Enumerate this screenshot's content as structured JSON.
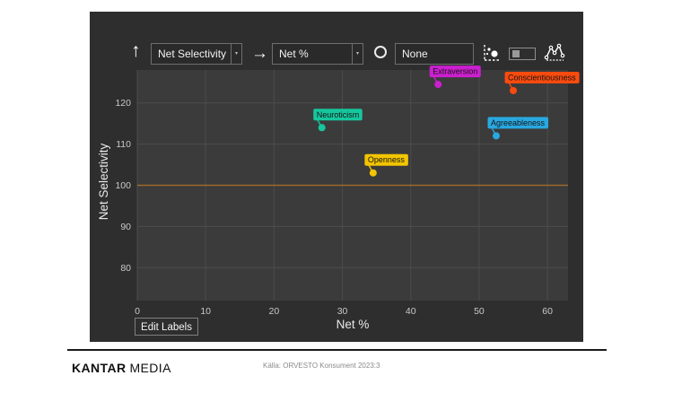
{
  "toolbar": {
    "y_axis_icon": "↑",
    "x_axis_icon": "→",
    "dropdown_caret": "▾",
    "y_axis_selector": {
      "value": "Net Selectivity"
    },
    "x_axis_selector": {
      "value": "Net %"
    },
    "size_selector": {
      "value": "None"
    }
  },
  "chart_data": {
    "type": "scatter",
    "title": "",
    "xlabel": "Net %",
    "ylabel": "Net Selectivity",
    "xlim": [
      0,
      63
    ],
    "ylim": [
      72,
      128
    ],
    "x_ticks": [
      0,
      10,
      20,
      30,
      40,
      50,
      60
    ],
    "y_ticks": [
      80,
      90,
      100,
      110,
      120
    ],
    "grid": true,
    "reference_line_y": 100,
    "legend": "none",
    "points": [
      {
        "label": "Extraversion",
        "x": 44,
        "y": 124.5,
        "color": "#CC1FD0"
      },
      {
        "label": "Conscientiousness",
        "x": 55,
        "y": 123,
        "color": "#FA4B0E"
      },
      {
        "label": "Neuroticism",
        "x": 27,
        "y": 114,
        "color": "#16C79E"
      },
      {
        "label": "Agreeableness",
        "x": 52.5,
        "y": 112,
        "color": "#29A8E0"
      },
      {
        "label": "Openness",
        "x": 34.5,
        "y": 103,
        "color": "#F2C500"
      }
    ]
  },
  "edit_labels_button": "Edit Labels",
  "footer": {
    "brand_bold": "KANTAR",
    "brand_light": "MEDIA",
    "source": "Källa: ORVESTO Konsument 2023:3"
  },
  "colors": {
    "panel_bg": "#2e2e2e",
    "plot_bg": "#3b3b3b",
    "gridline": "#4c4c4c",
    "tick_text": "#c9c9c9",
    "axis_title": "#e9e9e9",
    "reference_line": "#9C6B2D",
    "label_text": "#141414"
  }
}
